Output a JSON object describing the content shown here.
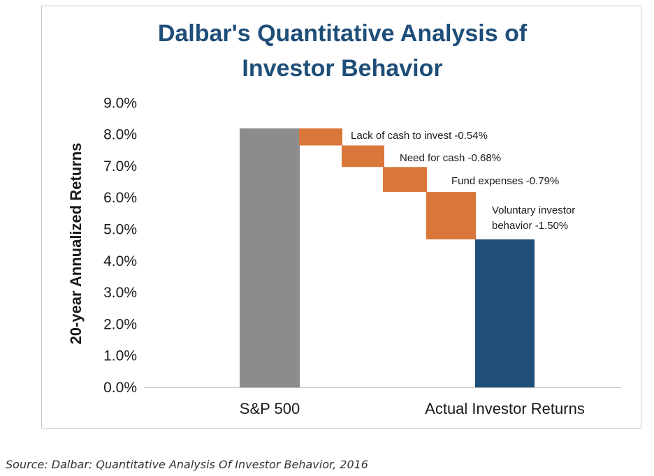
{
  "source_note": "Source: Dalbar: Quantitative Analysis Of Investor Behavior, 2016",
  "colors": {
    "title": "#1f4e79",
    "sp500_bar": "#8c8c8c",
    "drag_bar": "#d9773a",
    "actual_bar": "#1f4e79",
    "axis": "#bfbfbf"
  },
  "chart_data": {
    "type": "bar",
    "subtype": "waterfall",
    "title_lines": [
      "Dalbar's Quantitative Analysis of",
      "Investor Behavior"
    ],
    "ylabel": "20-year Annualized Returns",
    "ylim": [
      0,
      9
    ],
    "yticks": [
      "0.0%",
      "1.0%",
      "2.0%",
      "3.0%",
      "4.0%",
      "5.0%",
      "6.0%",
      "7.0%",
      "8.0%",
      "9.0%"
    ],
    "categories": [
      "S&P 500",
      "Actual Investor Returns"
    ],
    "start": {
      "label": "S&P 500",
      "value": 8.19
    },
    "steps": [
      {
        "label": "Lack of cash to invest -0.54%",
        "delta": -0.54
      },
      {
        "label": "Need for cash -0.68%",
        "delta": -0.68
      },
      {
        "label": "Fund expenses -0.79%",
        "delta": -0.79
      },
      {
        "label_lines": [
          "Voluntary investor",
          "behavior -1.50%"
        ],
        "delta": -1.5
      }
    ],
    "end": {
      "label": "Actual Investor Returns",
      "value": 4.68
    },
    "grid": false,
    "legend": "none"
  }
}
